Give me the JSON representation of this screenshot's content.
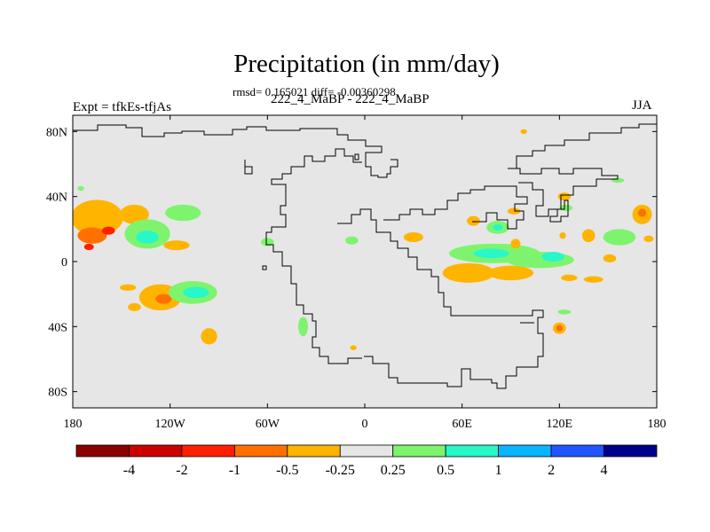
{
  "chart_data": {
    "type": "heatmap",
    "title": "Precipitation (in mm/day)",
    "stats_line": "rmsd= 0.165021 diff= -0.00360298",
    "subtitle": "222_4_MaBP - 222_4_MaBP",
    "left_label": "Expt = tfkEs-tfjAs",
    "right_label": "JJA",
    "x_range": [
      -180,
      180
    ],
    "y_range": [
      -90,
      90
    ],
    "x_ticks": [
      {
        "v": -180,
        "label": "180"
      },
      {
        "v": -120,
        "label": "120W"
      },
      {
        "v": -60,
        "label": "60W"
      },
      {
        "v": 0,
        "label": "0"
      },
      {
        "v": 60,
        "label": "60E"
      },
      {
        "v": 120,
        "label": "120E"
      },
      {
        "v": 180,
        "label": "180"
      }
    ],
    "y_ticks": [
      {
        "v": 80,
        "label": "80N"
      },
      {
        "v": 40,
        "label": "40N"
      },
      {
        "v": 0,
        "label": "0"
      },
      {
        "v": -40,
        "label": "40S"
      },
      {
        "v": -80,
        "label": "80S"
      }
    ],
    "background_color": "#e6e6e6",
    "colorbar": {
      "colors": [
        "#8b0000",
        "#cd0000",
        "#ff2000",
        "#ff7000",
        "#ffb400",
        "#e6e6e6",
        "#7ef46e",
        "#29f7c8",
        "#0ab4ff",
        "#2055ff",
        "#00008b"
      ],
      "labels": [
        "-4",
        "-2",
        "-1",
        "-0.5",
        "-0.25",
        "0.25",
        "0.5",
        "1",
        "2",
        "4"
      ]
    },
    "anomalies": [
      {
        "lon": -165,
        "lat": 27,
        "rx": 16,
        "ry": 11,
        "level": "-0.25"
      },
      {
        "lon": -168,
        "lat": 16,
        "rx": 9,
        "ry": 5,
        "level": "-0.5"
      },
      {
        "lon": -158,
        "lat": 19,
        "rx": 4,
        "ry": 2.5,
        "level": "-1"
      },
      {
        "lon": -170,
        "lat": 9,
        "rx": 3,
        "ry": 2,
        "level": "-1"
      },
      {
        "lon": -142,
        "lat": 29,
        "rx": 9,
        "ry": 6,
        "level": "-0.25"
      },
      {
        "lon": -134,
        "lat": 17,
        "rx": 14,
        "ry": 9,
        "level": "0.25"
      },
      {
        "lon": -134,
        "lat": 15,
        "rx": 7,
        "ry": 4,
        "level": "0.5"
      },
      {
        "lon": -112,
        "lat": 30,
        "rx": 11,
        "ry": 5,
        "level": "0.25"
      },
      {
        "lon": -116,
        "lat": 10,
        "rx": 8,
        "ry": 3,
        "level": "-0.25"
      },
      {
        "lon": -126,
        "lat": -22,
        "rx": 13,
        "ry": 8,
        "level": "-0.25"
      },
      {
        "lon": -124,
        "lat": -23,
        "rx": 5,
        "ry": 3,
        "level": "-0.5"
      },
      {
        "lon": -106,
        "lat": -19,
        "rx": 15,
        "ry": 7,
        "level": "0.25"
      },
      {
        "lon": -104,
        "lat": -19,
        "rx": 8,
        "ry": 3.5,
        "level": "0.5"
      },
      {
        "lon": -146,
        "lat": -16,
        "rx": 5,
        "ry": 2,
        "level": "-0.25"
      },
      {
        "lon": -142,
        "lat": -28,
        "rx": 4,
        "ry": 2.5,
        "level": "-0.25"
      },
      {
        "lon": -96,
        "lat": -46,
        "rx": 5,
        "ry": 5,
        "level": "-0.25"
      },
      {
        "lon": -38,
        "lat": -40,
        "rx": 3,
        "ry": 6,
        "level": "0.25"
      },
      {
        "lon": -60,
        "lat": 12,
        "rx": 4,
        "ry": 2.5,
        "level": "0.25"
      },
      {
        "lon": -8,
        "lat": 13,
        "rx": 4,
        "ry": 2.5,
        "level": "0.25"
      },
      {
        "lon": 30,
        "lat": 15,
        "rx": 6,
        "ry": 3,
        "level": "-0.25"
      },
      {
        "lon": 64,
        "lat": -7,
        "rx": 16,
        "ry": 6,
        "level": "-0.25"
      },
      {
        "lon": 90,
        "lat": -7,
        "rx": 14,
        "ry": 4.5,
        "level": "-0.25"
      },
      {
        "lon": 80,
        "lat": 5,
        "rx": 28,
        "ry": 6,
        "level": "0.25"
      },
      {
        "lon": 78,
        "lat": 5,
        "rx": 11,
        "ry": 3,
        "level": "0.5"
      },
      {
        "lon": 108,
        "lat": 1,
        "rx": 21,
        "ry": 5,
        "level": "0.25"
      },
      {
        "lon": 116,
        "lat": 3,
        "rx": 7,
        "ry": 3,
        "level": "0.5"
      },
      {
        "lon": 82,
        "lat": 21,
        "rx": 7,
        "ry": 4,
        "level": "0.25"
      },
      {
        "lon": 82,
        "lat": 21,
        "rx": 3,
        "ry": 2,
        "level": "0.5"
      },
      {
        "lon": 67,
        "lat": 25,
        "rx": 4,
        "ry": 3,
        "level": "-0.25"
      },
      {
        "lon": 92,
        "lat": 31,
        "rx": 4,
        "ry": 2,
        "level": "-0.25"
      },
      {
        "lon": 93,
        "lat": 11,
        "rx": 3,
        "ry": 3,
        "level": "-0.25"
      },
      {
        "lon": 124,
        "lat": 33,
        "rx": 4,
        "ry": 2,
        "level": "0.25"
      },
      {
        "lon": 123,
        "lat": 40,
        "rx": 4,
        "ry": 2.5,
        "level": "-0.25"
      },
      {
        "lon": 122,
        "lat": 16,
        "rx": 2,
        "ry": 2,
        "level": "-0.25"
      },
      {
        "lon": 138,
        "lat": 16,
        "rx": 4,
        "ry": 4,
        "level": "-0.25"
      },
      {
        "lon": 157,
        "lat": 15,
        "rx": 10,
        "ry": 5,
        "level": "0.25"
      },
      {
        "lon": 151,
        "lat": 2,
        "rx": 4,
        "ry": 2.5,
        "level": "-0.25"
      },
      {
        "lon": 171,
        "lat": 29,
        "rx": 6,
        "ry": 6,
        "level": "-0.25"
      },
      {
        "lon": 171,
        "lat": 30,
        "rx": 2.5,
        "ry": 2.5,
        "level": "-0.5"
      },
      {
        "lon": 175,
        "lat": 14,
        "rx": 3,
        "ry": 2,
        "level": "-0.25"
      },
      {
        "lon": 126,
        "lat": -10,
        "rx": 5,
        "ry": 2,
        "level": "-0.25"
      },
      {
        "lon": 141,
        "lat": -11,
        "rx": 6,
        "ry": 2,
        "level": "-0.25"
      },
      {
        "lon": 120,
        "lat": -41,
        "rx": 4,
        "ry": 3.5,
        "level": "-0.25"
      },
      {
        "lon": 120,
        "lat": -41,
        "rx": 2,
        "ry": 2,
        "level": "-0.5"
      },
      {
        "lon": 123,
        "lat": -31,
        "rx": 4,
        "ry": 1.5,
        "level": "0.25"
      },
      {
        "lon": 156,
        "lat": 50,
        "rx": 4,
        "ry": 1.5,
        "level": "0.25"
      },
      {
        "lon": -175,
        "lat": 45,
        "rx": 2,
        "ry": 1.5,
        "level": "0.25"
      },
      {
        "lon": 98,
        "lat": 80,
        "rx": 2,
        "ry": 1.5,
        "level": "-0.25"
      },
      {
        "lon": -7,
        "lat": -53,
        "rx": 2,
        "ry": 1.5,
        "level": "-0.25"
      }
    ]
  }
}
